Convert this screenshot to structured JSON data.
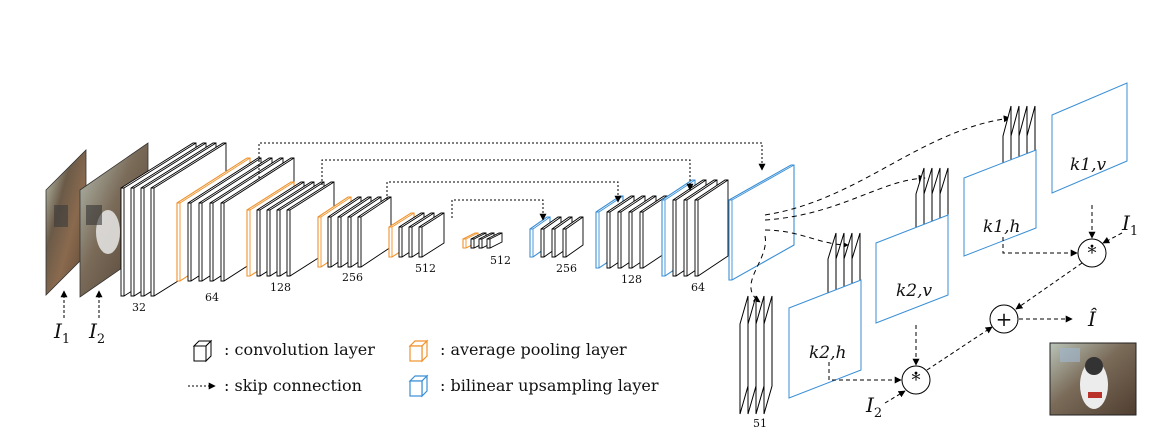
{
  "inputs": {
    "i1_label": "I",
    "i1_sub": "1",
    "i2_label": "I",
    "i2_sub": "2"
  },
  "encoder_channels": [
    "32",
    "64",
    "128",
    "256",
    "512",
    "512"
  ],
  "decoder_channels": [
    "256",
    "128",
    "64"
  ],
  "subnets": [
    {
      "kernel": "k1,v"
    },
    {
      "kernel": "k1,h"
    },
    {
      "kernel": "k2,v"
    },
    {
      "kernel": "k2,h"
    }
  ],
  "subnet_channels": "51",
  "ops": {
    "conv_symbol": "*",
    "sum_symbol": "+",
    "i1_label": "I",
    "i1_sub": "1",
    "i2_label": "I",
    "i2_sub": "2",
    "output_label": "Î"
  },
  "legend": {
    "conv": ": convolution layer",
    "pool": ": average pooling layer",
    "skip": ": skip connection",
    "upsample": ": bilinear upsampling layer"
  },
  "colors": {
    "conv": "#000000",
    "pool": "#f0922b",
    "upsample": "#3a8fd6"
  }
}
